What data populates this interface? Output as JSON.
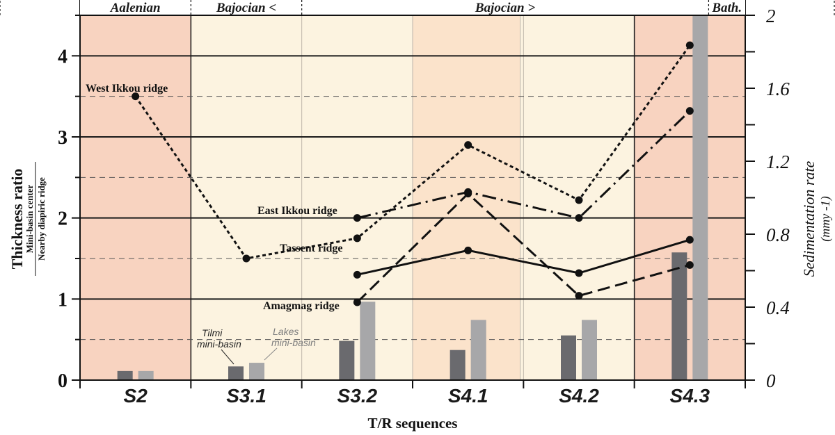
{
  "chart_data": {
    "type": "line",
    "title": "",
    "xlabel": "T/R sequences",
    "ylabel": "Thickness ratio",
    "ylabel_fraction": {
      "numerator": "Mini-basin center",
      "denominator": "Nearby diapiric ridge"
    },
    "ylim": [
      0,
      4.5
    ],
    "y_ticks": [
      "0",
      "1",
      "2",
      "3",
      "4"
    ],
    "y2label": "Sedimentation rate",
    "y2label_unit": "(mmy -1)",
    "y2lim": [
      0,
      2
    ],
    "y2_ticks": [
      "0",
      "0.4",
      "0.8",
      "1.2",
      "1.6",
      "2"
    ],
    "categories": [
      "S2",
      "S3.1",
      "S3.2",
      "S4.1",
      "S4.2",
      "S4.3"
    ],
    "stages": [
      {
        "label": "Aalenian",
        "from": 0,
        "to": 1
      },
      {
        "label": "Bajocian <",
        "from": 1,
        "to": 2
      },
      {
        "label": "Bajocian >",
        "from": 2,
        "to": 5.67
      },
      {
        "label": "Bath.",
        "from": 5.67,
        "to": 6
      }
    ],
    "line_series": [
      {
        "name": "West Ikkou ridge",
        "style": "dotted",
        "x": [
          0.5,
          1.5,
          2.5,
          3.5,
          4.5,
          5.5
        ],
        "values": [
          3.5,
          1.5,
          1.75,
          2.9,
          2.22,
          4.13
        ]
      },
      {
        "name": "East Ikkou ridge",
        "style": "dashdot",
        "x": [
          2.5,
          3.5,
          4.5,
          5.5
        ],
        "values": [
          2.0,
          2.32,
          2.0,
          3.32
        ]
      },
      {
        "name": "Tassent ridge",
        "style": "solid",
        "x": [
          2.5,
          3.5,
          4.5,
          5.5
        ],
        "values": [
          1.3,
          1.6,
          1.32,
          1.73
        ]
      },
      {
        "name": "Amagmag ridge",
        "style": "dashed",
        "x": [
          2.5,
          3.5,
          4.5,
          5.5
        ],
        "values": [
          0.96,
          2.3,
          1.04,
          1.42
        ]
      }
    ],
    "bar_series": [
      {
        "name": "Tilmi mini-basin",
        "color": "#6a6a6e",
        "values": [
          0.05,
          0.075,
          0.215,
          0.165,
          0.245,
          0.7
        ]
      },
      {
        "name": "Lakes mini-basin",
        "color": "#a7a7a9",
        "values": [
          0.05,
          0.095,
          0.43,
          0.33,
          0.33,
          2.0
        ]
      }
    ],
    "grid": true
  },
  "labels": {
    "tilmi_line1": "Tilmi",
    "tilmi_line2": "mini-basin",
    "lakes_line1": "Lakes",
    "lakes_line2": "mini-basin"
  },
  "colors": {
    "salmon": "#f8d3c0",
    "cream": "#fcf3e0",
    "peach": "#fbe3cb",
    "bar_dark": "#6a6a6e",
    "bar_light": "#a7a7a9"
  }
}
